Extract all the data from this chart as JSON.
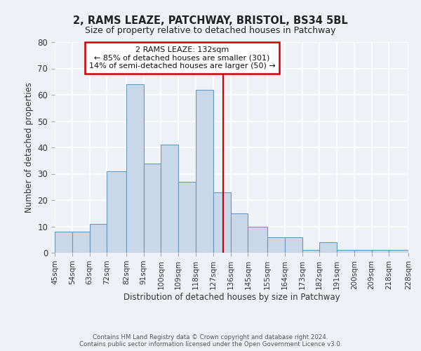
{
  "title": "2, RAMS LEAZE, PATCHWAY, BRISTOL, BS34 5BL",
  "subtitle": "Size of property relative to detached houses in Patchway",
  "xlabel": "Distribution of detached houses by size in Patchway",
  "ylabel": "Number of detached properties",
  "bin_edges": [
    45,
    54,
    63,
    72,
    82,
    91,
    100,
    109,
    118,
    127,
    136,
    145,
    155,
    164,
    173,
    182,
    191,
    200,
    209,
    218,
    228
  ],
  "counts": [
    8,
    8,
    11,
    31,
    64,
    34,
    41,
    27,
    62,
    23,
    15,
    10,
    6,
    6,
    1,
    4,
    1,
    1,
    1,
    1
  ],
  "bar_facecolor": "#c8d8e8",
  "bar_edgecolor": "#6699bb",
  "vline_x": 132,
  "vline_color": "#cc0000",
  "annotation_title": "2 RAMS LEAZE: 132sqm",
  "annotation_line1": "← 85% of detached houses are smaller (301)",
  "annotation_line2": "14% of semi-detached houses are larger (50) →",
  "annotation_box_edgecolor": "#cc0000",
  "ylim": [
    0,
    80
  ],
  "yticks": [
    0,
    10,
    20,
    30,
    40,
    50,
    60,
    70,
    80
  ],
  "tick_labels": [
    "45sqm",
    "54sqm",
    "63sqm",
    "72sqm",
    "82sqm",
    "91sqm",
    "100sqm",
    "109sqm",
    "118sqm",
    "127sqm",
    "136sqm",
    "145sqm",
    "155sqm",
    "164sqm",
    "173sqm",
    "182sqm",
    "191sqm",
    "200sqm",
    "209sqm",
    "218sqm",
    "228sqm"
  ],
  "footer1": "Contains HM Land Registry data © Crown copyright and database right 2024.",
  "footer2": "Contains public sector information licensed under the Open Government Licence v3.0.",
  "bg_color": "#eef2f7",
  "grid_color": "#ffffff"
}
